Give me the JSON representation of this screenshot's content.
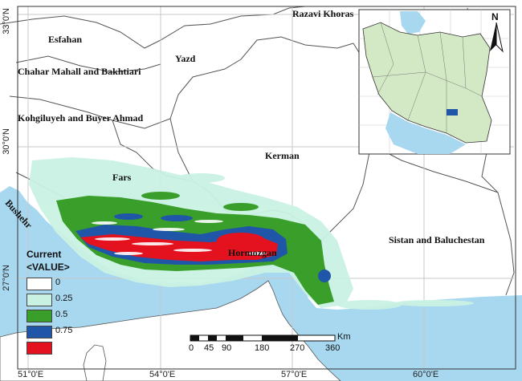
{
  "map": {
    "regions": [
      {
        "id": "esfahan",
        "label": "Esfahan"
      },
      {
        "id": "chahar",
        "label": "Chahar Mahall and Bakhtiari"
      },
      {
        "id": "kohgiluyeh",
        "label": "Kohgiluyeh and Buyer Ahmad"
      },
      {
        "id": "yazd",
        "label": "Yazd"
      },
      {
        "id": "razavi",
        "label": "Razavi Khoras"
      },
      {
        "id": "kerman",
        "label": "Kerman"
      },
      {
        "id": "fars",
        "label": "Fars"
      },
      {
        "id": "bushehr",
        "label": "Bushehr"
      },
      {
        "id": "hormozgan",
        "label": "Hormozgan"
      },
      {
        "id": "sistan",
        "label": "Sistan and Baluchestan"
      }
    ],
    "lat_ticks": [
      "33°0'N",
      "30°0'N",
      "27°0'N"
    ],
    "lon_ticks": [
      "51°0'E",
      "54°0'E",
      "57°0'E",
      "60°0'E"
    ],
    "colors": {
      "sea": "#a8d8f0",
      "land": "#ffffff",
      "border": "#555555",
      "grid": "#c8c8c8",
      "v0": "#ffffff",
      "v025": "#c9f2e3",
      "v05": "#3a9e2a",
      "v075": "#1f56a8",
      "v1": "#e4121f",
      "inset_land": "#d3e8c4"
    }
  },
  "legend": {
    "title": "Current",
    "subtitle": "<VALUE>",
    "items": [
      {
        "label": "0",
        "color": "#ffffff"
      },
      {
        "label": "0.25",
        "color": "#c9f2e3"
      },
      {
        "label": "0.5",
        "color": "#3a9e2a"
      },
      {
        "label": "0.75",
        "color": "#1f56a8"
      },
      {
        "label": "",
        "color": "#e4121f"
      }
    ]
  },
  "scale": {
    "unit": "Km",
    "labels": [
      "0",
      "45",
      "90",
      "180",
      "270",
      "360"
    ]
  },
  "north_arrow": {
    "label": "N"
  }
}
